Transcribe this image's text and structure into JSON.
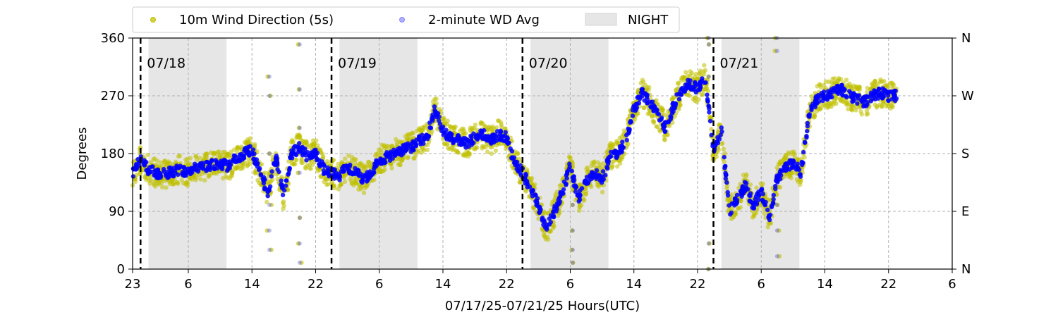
{
  "chart_data": {
    "type": "scatter",
    "title": "",
    "xlabel": "07/17/25-07/21/25  Hours(UTC)",
    "ylabel": "Degrees",
    "x_unit": "hours since 07/17/25 23:00 UTC",
    "xlim": [
      0,
      103
    ],
    "ylim": [
      0,
      360
    ],
    "x_ticks": [
      {
        "label": "23",
        "x": 0
      },
      {
        "label": "6",
        "x": 7
      },
      {
        "label": "14",
        "x": 15
      },
      {
        "label": "22",
        "x": 23
      },
      {
        "label": "6",
        "x": 31
      },
      {
        "label": "14",
        "x": 39
      },
      {
        "label": "22",
        "x": 47
      },
      {
        "label": "6",
        "x": 55
      },
      {
        "label": "14",
        "x": 63
      },
      {
        "label": "22",
        "x": 71
      },
      {
        "label": "6",
        "x": 79
      },
      {
        "label": "14",
        "x": 87
      },
      {
        "label": "22",
        "x": 95
      },
      {
        "label": "6",
        "x": 103
      }
    ],
    "y_ticks": [
      0,
      90,
      180,
      270,
      360
    ],
    "y2_ticks": [
      {
        "value": 0,
        "label": "N"
      },
      {
        "value": 90,
        "label": "E"
      },
      {
        "value": 180,
        "label": "S"
      },
      {
        "value": 270,
        "label": "W"
      },
      {
        "value": 360,
        "label": "N"
      }
    ],
    "grid": true,
    "legend": {
      "placement": "top",
      "entries": [
        "10m Wind Direction (5s)",
        "2-minute WD Avg",
        "NIGHT"
      ]
    },
    "day_markers": [
      {
        "label": "07/18",
        "x": 1
      },
      {
        "label": "07/19",
        "x": 25
      },
      {
        "label": "07/20",
        "x": 49
      },
      {
        "label": "07/21",
        "x": 73
      }
    ],
    "night_bands": [
      [
        2,
        11.8
      ],
      [
        26,
        35.8
      ],
      [
        50,
        59.8
      ],
      [
        74,
        83.8
      ]
    ],
    "series": [
      {
        "name": "10m Wind Direction (5s)",
        "color": "#bfbf00",
        "spread": 22,
        "x": [
          0,
          1,
          2,
          3,
          4,
          5,
          6,
          7,
          8,
          9,
          10,
          11,
          12,
          13,
          14,
          15,
          16,
          17,
          18,
          19,
          20,
          21,
          22,
          23,
          24,
          25,
          26,
          27,
          28,
          29,
          30,
          31,
          32,
          33,
          34,
          35,
          36,
          37,
          38,
          39,
          40,
          41,
          42,
          43,
          44,
          45,
          46,
          47,
          48,
          49,
          50,
          51,
          52,
          53,
          54,
          55,
          56,
          57,
          58,
          59,
          60,
          61,
          62,
          63,
          64,
          65,
          66,
          67,
          68,
          69,
          70,
          71,
          72,
          73,
          74,
          75,
          76,
          77,
          78,
          79,
          80,
          81,
          82,
          83,
          84,
          85,
          86,
          87,
          88,
          89,
          90,
          91,
          92,
          93,
          94,
          95
        ],
        "y": [
          150,
          170,
          155,
          150,
          148,
          152,
          155,
          150,
          160,
          158,
          162,
          165,
          160,
          172,
          180,
          185,
          150,
          120,
          175,
          110,
          180,
          190,
          175,
          180,
          155,
          150,
          145,
          160,
          150,
          140,
          150,
          170,
          175,
          180,
          185,
          190,
          200,
          205,
          250,
          215,
          205,
          200,
          195,
          205,
          210,
          200,
          210,
          205,
          165,
          150,
          125,
          100,
          60,
          90,
          120,
          160,
          110,
          135,
          150,
          140,
          175,
          180,
          200,
          250,
          275,
          260,
          240,
          220,
          255,
          280,
          290,
          280,
          300,
          185,
          215,
          90,
          110,
          130,
          100,
          120,
          80,
          140,
          160,
          165,
          150,
          240,
          265,
          270,
          275,
          280,
          270,
          265,
          260,
          270,
          275,
          270
        ]
      },
      {
        "name": "2-minute WD Avg",
        "color": "#0000ff",
        "spread": 8,
        "x": [
          0,
          1,
          2,
          3,
          4,
          5,
          6,
          7,
          8,
          9,
          10,
          11,
          12,
          13,
          14,
          15,
          16,
          17,
          18,
          19,
          20,
          21,
          22,
          23,
          24,
          25,
          26,
          27,
          28,
          29,
          30,
          31,
          32,
          33,
          34,
          35,
          36,
          37,
          38,
          39,
          40,
          41,
          42,
          43,
          44,
          45,
          46,
          47,
          48,
          49,
          50,
          51,
          52,
          53,
          54,
          55,
          56,
          57,
          58,
          59,
          60,
          61,
          62,
          63,
          64,
          65,
          66,
          67,
          68,
          69,
          70,
          71,
          72,
          73,
          74,
          75,
          76,
          77,
          78,
          79,
          80,
          81,
          82,
          83,
          84,
          85,
          86,
          87,
          88,
          89,
          90,
          91,
          92,
          93,
          94,
          95
        ],
        "y": [
          150,
          170,
          155,
          150,
          148,
          152,
          155,
          150,
          160,
          158,
          162,
          165,
          160,
          172,
          180,
          185,
          150,
          120,
          175,
          110,
          180,
          190,
          175,
          180,
          155,
          150,
          145,
          160,
          150,
          140,
          150,
          170,
          175,
          180,
          185,
          190,
          200,
          205,
          250,
          215,
          205,
          200,
          195,
          205,
          210,
          200,
          210,
          205,
          165,
          150,
          125,
          100,
          60,
          90,
          120,
          160,
          110,
          135,
          150,
          140,
          175,
          180,
          200,
          250,
          275,
          260,
          240,
          220,
          255,
          280,
          290,
          280,
          300,
          185,
          215,
          90,
          110,
          130,
          100,
          120,
          80,
          140,
          160,
          165,
          150,
          240,
          265,
          270,
          275,
          280,
          270,
          265,
          260,
          270,
          275,
          270
        ]
      }
    ],
    "excursions": [
      {
        "x": 17.2,
        "values": [
          30,
          60,
          100,
          180,
          270,
          300
        ]
      },
      {
        "x": 21.0,
        "values": [
          10,
          40,
          80,
          150,
          220,
          280,
          350
        ]
      },
      {
        "x": 55.3,
        "values": [
          10,
          30,
          60,
          100
        ]
      },
      {
        "x": 72.4,
        "values": [
          0,
          40,
          300,
          350,
          360
        ]
      },
      {
        "x": 81.0,
        "values": [
          360,
          340,
          20,
          60,
          100
        ]
      }
    ]
  }
}
